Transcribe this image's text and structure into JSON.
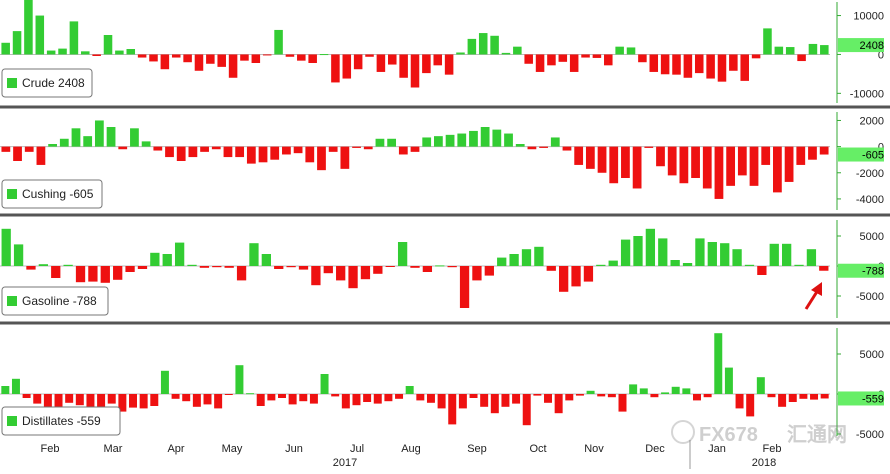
{
  "colors": {
    "positive": "#33cc33",
    "negative": "#ee1111",
    "divider": "#555555",
    "axis": "#33aa33",
    "highlight": "#66ee66"
  },
  "x_axis": {
    "months": [
      "Feb",
      "Mar",
      "Apr",
      "May",
      "Jun",
      "Jul",
      "Aug",
      "Sep",
      "Oct",
      "Nov",
      "Dec",
      "Jan",
      "Feb"
    ],
    "years": [
      "2017",
      "2018"
    ]
  },
  "chart_data": [
    {
      "type": "bar",
      "legend": "Crude 2408",
      "ylim": [
        -13000,
        14000
      ],
      "ticks": [
        "10000",
        "0",
        "-10000"
      ],
      "last_label": "2408",
      "values": [
        3000,
        6000,
        14000,
        10000,
        1000,
        1500,
        8500,
        800,
        -400,
        5000,
        1000,
        1400,
        -800,
        -1800,
        -3800,
        -800,
        -2000,
        -4200,
        -2400,
        -3200,
        -6000,
        -1600,
        -2200,
        -100,
        6300,
        -600,
        -1600,
        -2200,
        100,
        -7200,
        -6200,
        -3800,
        -600,
        -4500,
        -2600,
        -6000,
        -8500,
        -4800,
        -2800,
        -5200,
        500,
        4000,
        5500,
        4800,
        400,
        2000,
        -2400,
        -4500,
        -2800,
        -1900,
        -4500,
        -800,
        -900,
        -2800,
        2000,
        1800,
        -2000,
        -4500,
        -5100,
        -5200,
        -6000,
        -4800,
        -6200,
        -7000,
        -4200,
        -6800,
        -1000,
        6700,
        2000,
        1900,
        -1700,
        2700,
        2408
      ]
    },
    {
      "type": "bar",
      "legend": "Cushing -605",
      "ylim": [
        -5000,
        2800
      ],
      "ticks": [
        "2000",
        "0",
        "-2000",
        "-4000"
      ],
      "last_label": "-605",
      "values": [
        -400,
        -1100,
        -400,
        -1400,
        200,
        600,
        1400,
        800,
        2000,
        1500,
        -200,
        1400,
        400,
        -300,
        -800,
        -1100,
        -800,
        -400,
        -200,
        -800,
        -800,
        -1300,
        -1200,
        -1000,
        -600,
        -500,
        -1200,
        -1800,
        -400,
        -1700,
        -100,
        -200,
        600,
        600,
        -600,
        -400,
        700,
        800,
        900,
        1000,
        1200,
        1500,
        1300,
        1000,
        200,
        -200,
        -100,
        700,
        -300,
        -1400,
        -1700,
        -2000,
        -2800,
        -2400,
        -3200,
        -100,
        -1500,
        -2200,
        -2800,
        -2400,
        -3200,
        -4000,
        -3000,
        -2200,
        -3000,
        -1400,
        -3500,
        -2700,
        -1400,
        -1000,
        -605
      ]
    },
    {
      "type": "bar",
      "legend": "Gasoline -788",
      "ylim": [
        -9000,
        8000
      ],
      "ticks": [
        "5000",
        "0",
        "-5000"
      ],
      "last_label": "-788",
      "values": [
        6200,
        3600,
        -600,
        300,
        -2000,
        200,
        -2700,
        -2600,
        -2800,
        -2300,
        -1000,
        -500,
        2200,
        2000,
        3900,
        200,
        -300,
        -200,
        -300,
        -2400,
        3800,
        2000,
        -500,
        -200,
        -600,
        -3200,
        -1200,
        -2400,
        -3700,
        -2200,
        -1300,
        -100,
        4000,
        -300,
        -1000,
        100,
        -200,
        -7000,
        -2400,
        -1600,
        1400,
        2000,
        2800,
        3200,
        -800,
        -4300,
        -3400,
        -2600,
        200,
        900,
        4400,
        5000,
        6200,
        4600,
        1000,
        500,
        4600,
        4000,
        3800,
        2800,
        200,
        -1500,
        3700,
        3700,
        200,
        2800,
        -788
      ]
    },
    {
      "type": "bar",
      "legend": "Distillates -559",
      "ylim": [
        -5500,
        8500
      ],
      "ticks": [
        "5000",
        "0",
        "-5000"
      ],
      "last_label": "-559",
      "values": [
        1000,
        1900,
        -500,
        -1200,
        -1600,
        -2000,
        -1100,
        -1400,
        -1700,
        -1700,
        -1200,
        -2200,
        -1700,
        -1800,
        -1500,
        2900,
        -600,
        -900,
        -1600,
        -1300,
        -1800,
        -100,
        3600,
        100,
        -1500,
        -800,
        -500,
        -1300,
        -900,
        -1200,
        2500,
        -300,
        -1800,
        -1400,
        -1000,
        -1200,
        -900,
        -600,
        1000,
        -800,
        -1100,
        -1800,
        -3800,
        -1800,
        -500,
        -1600,
        -2400,
        -1600,
        -1200,
        -3900,
        -200,
        -1100,
        -2400,
        -800,
        -200,
        400,
        -300,
        -400,
        -2200,
        1200,
        700,
        -400,
        200,
        900,
        700,
        -800,
        -400,
        7600,
        3300,
        -1800,
        -2800,
        2100,
        -400,
        -1600,
        -1000,
        -600,
        -700,
        -559
      ]
    }
  ],
  "watermark": {
    "text_cn": "汇通网",
    "text_latin": "FX678"
  }
}
